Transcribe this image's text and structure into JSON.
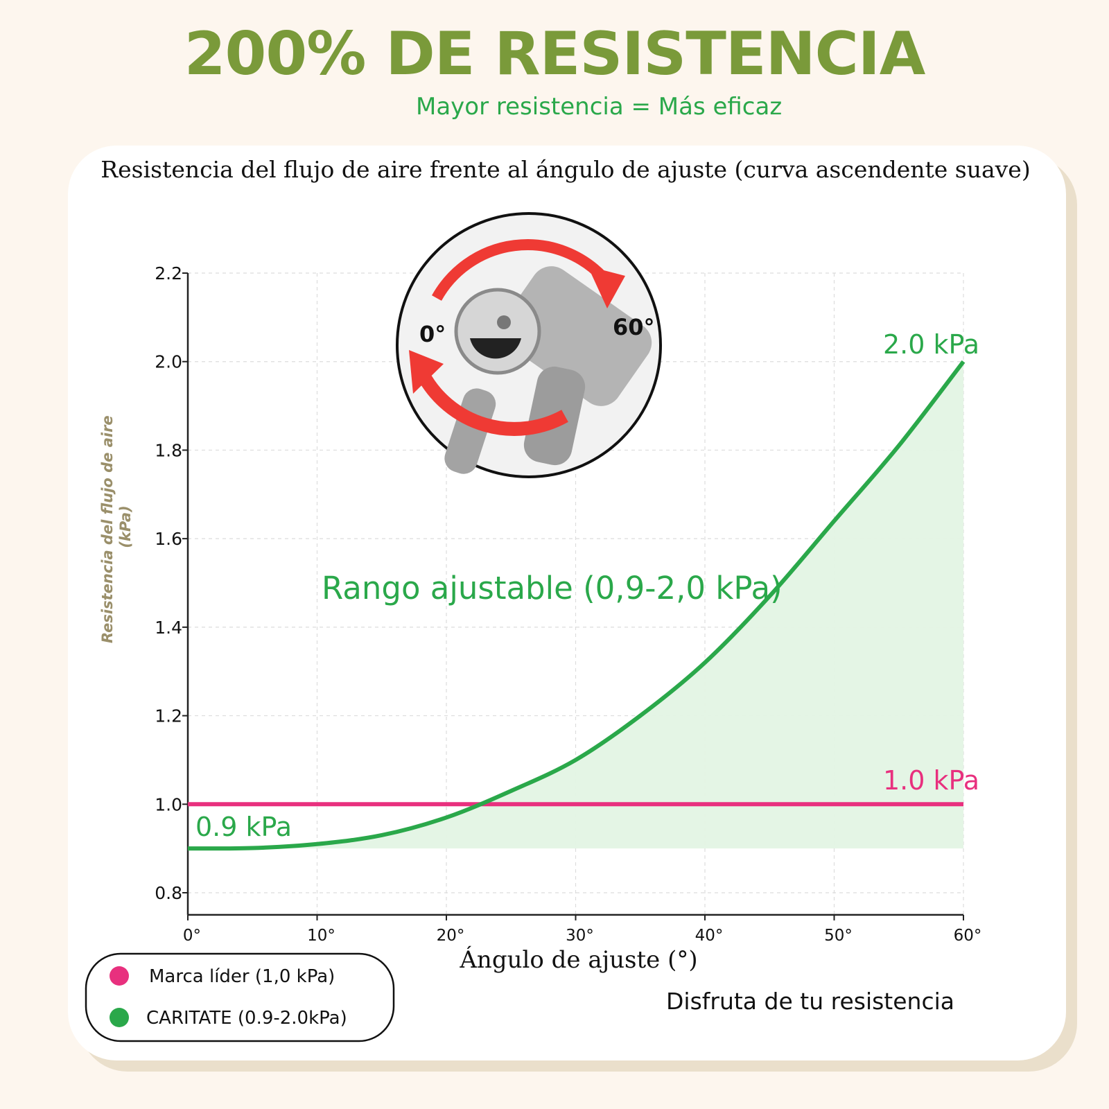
{
  "header": {
    "title": "200% DE RESISTENCIA",
    "subtitle": "Mayor resistencia = Más eficaz"
  },
  "colors": {
    "headline": "#7a9a3a",
    "green": "#2aa84a",
    "pink": "#e8307e",
    "fill": "#e3f4e4",
    "axis_label": "#9a8f6a"
  },
  "chart_data": {
    "type": "line",
    "title": "Resistencia del flujo de aire frente al ángulo de ajuste (curva ascendente suave)",
    "xlabel": "Ángulo de ajuste (°)",
    "ylabel": "Resistencia del flujo de aire\n(kPa)",
    "xlim": [
      0,
      60
    ],
    "ylim": [
      0.75,
      2.2
    ],
    "x_ticks": [
      0,
      10,
      20,
      30,
      40,
      50,
      60
    ],
    "x_tick_labels": [
      "0°",
      "10°",
      "20°",
      "30°",
      "40°",
      "50°",
      "60°"
    ],
    "y_ticks": [
      0.8,
      1.0,
      1.2,
      1.4,
      1.6,
      1.8,
      2.0,
      2.2
    ],
    "y_tick_labels": [
      "0.8",
      "1.0",
      "1.2",
      "1.4",
      "1.6",
      "1.8",
      "2.0",
      "2.2"
    ],
    "grid": true,
    "series": [
      {
        "name": "CARITATE (0.9-2.0kPa)",
        "color": "#2aa84a",
        "x": [
          0,
          5,
          10,
          15,
          20,
          25,
          30,
          35,
          40,
          45,
          50,
          55,
          60
        ],
        "y": [
          0.9,
          0.901,
          0.91,
          0.93,
          0.97,
          1.03,
          1.1,
          1.2,
          1.32,
          1.47,
          1.64,
          1.81,
          2.0
        ]
      },
      {
        "name": "Marca líder (1,0 kPa)",
        "color": "#e8307e",
        "x": [
          0,
          60
        ],
        "y": [
          1.0,
          1.0
        ]
      }
    ],
    "annotations": {
      "start_label": "0.9 kPa",
      "end_label": "2.0 kPa",
      "leader_label": "1.0 kPa",
      "range_label": "Rango ajustable (0,9-2,0 kPa)"
    },
    "legend": {
      "placement": "bottom-left",
      "items": [
        {
          "label": "Marca líder (1,0 kPa)",
          "color": "#e8307e"
        },
        {
          "label": "CARITATE (0.9-2.0kPa)",
          "color": "#2aa84a"
        }
      ]
    },
    "footer_note": "Disfruta de tu resistencia"
  },
  "dial": {
    "start_label": "0°",
    "end_label": "60°"
  }
}
